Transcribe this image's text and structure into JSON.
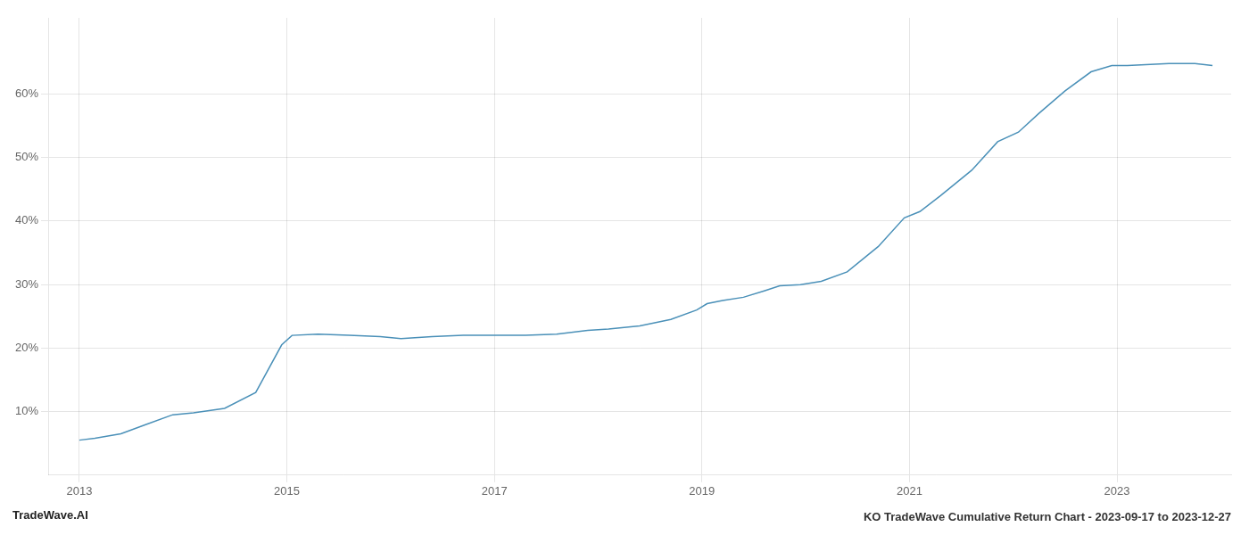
{
  "chart_data": {
    "type": "line",
    "title": "KO TradeWave Cumulative Return Chart - 2023-09-17 to 2023-12-27",
    "annotations": [
      "TradeWave.AI"
    ],
    "x": [
      2013.0,
      2013.15,
      2013.4,
      2013.65,
      2013.9,
      2014.1,
      2014.4,
      2014.7,
      2014.95,
      2015.05,
      2015.3,
      2015.6,
      2015.9,
      2016.1,
      2016.4,
      2016.7,
      2016.95,
      2017.05,
      2017.3,
      2017.6,
      2017.9,
      2018.1,
      2018.4,
      2018.7,
      2018.95,
      2019.05,
      2019.2,
      2019.4,
      2019.6,
      2019.75,
      2019.95,
      2020.15,
      2020.4,
      2020.7,
      2020.95,
      2021.1,
      2021.3,
      2021.6,
      2021.85,
      2022.05,
      2022.25,
      2022.5,
      2022.75,
      2022.95,
      2023.1,
      2023.5,
      2023.75,
      2023.92
    ],
    "values": [
      5.5,
      5.8,
      6.5,
      8.0,
      9.5,
      9.8,
      10.5,
      13.0,
      20.5,
      22.0,
      22.2,
      22.0,
      21.8,
      21.5,
      21.8,
      22.0,
      22.0,
      22.0,
      22.0,
      22.2,
      22.8,
      23.0,
      23.5,
      24.5,
      26.0,
      27.0,
      27.5,
      28.0,
      29.0,
      29.8,
      30.0,
      30.5,
      32.0,
      36.0,
      40.5,
      41.5,
      44.0,
      48.0,
      52.5,
      54.0,
      57.0,
      60.5,
      63.5,
      64.5,
      64.5,
      64.8,
      64.8,
      64.5
    ],
    "color": "#4a90b8",
    "xlim": [
      2012.7,
      2024.1
    ],
    "xticks": [
      2013,
      2015,
      2017,
      2019,
      2021,
      2023
    ],
    "ylim": [
      0,
      72
    ],
    "yticks": [
      {
        "value": 10,
        "label": "10%"
      },
      {
        "value": 20,
        "label": "20%"
      },
      {
        "value": 30,
        "label": "30%"
      },
      {
        "value": 40,
        "label": "40%"
      },
      {
        "value": 50,
        "label": "50%"
      },
      {
        "value": 60,
        "label": "60%"
      }
    ],
    "grid": true
  }
}
